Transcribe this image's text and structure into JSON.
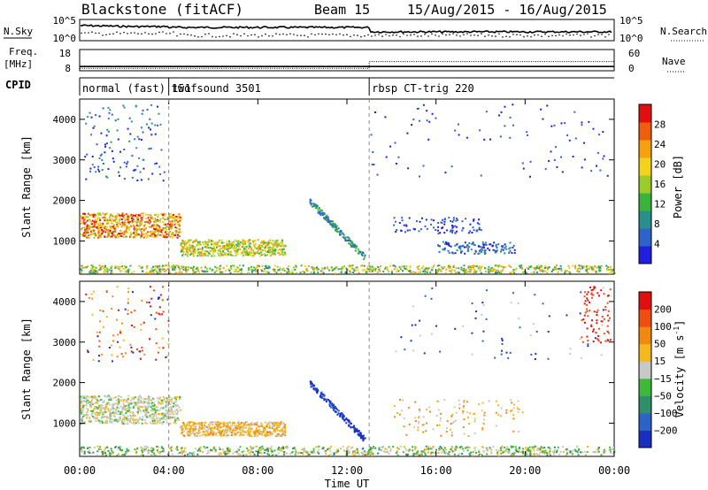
{
  "header": {
    "title": "Blackstone (fitACF)",
    "beam": "Beam 15",
    "date_range": "15/Aug/2015 - 16/Aug/2015"
  },
  "chart_data": [
    {
      "type": "line",
      "name": "noise-panel",
      "left_label": "N.Sky",
      "right_label": "N.Search",
      "left_ticks": [
        "10^5",
        "10^0"
      ],
      "right_ticks": [
        "10^5",
        "10^0"
      ],
      "series": [
        {
          "name": "N.Sky",
          "style": "solid"
        },
        {
          "name": "N.Search",
          "style": "dotted"
        }
      ]
    },
    {
      "type": "line",
      "name": "frequency-panel",
      "left_label": "Freq.",
      "left_unit": "[MHz]",
      "right_label": "Nave",
      "left_ticks": [
        "18",
        "8"
      ],
      "right_ticks": [
        "60",
        "0"
      ],
      "x": [
        "00:00",
        "04:00",
        "13:00",
        "24:00"
      ],
      "freq": [
        10,
        10,
        10,
        10
      ],
      "nave": [
        7,
        7,
        26,
        26
      ]
    },
    {
      "type": "table",
      "name": "cpid-panel",
      "label": "CPID",
      "segments": [
        {
          "start": 0,
          "end": 4,
          "label": "normal (fast) 151"
        },
        {
          "start": 4,
          "end": 13,
          "label": "twofsound 3501"
        },
        {
          "start": 13,
          "end": 24,
          "label": "rbsp CT-trig 220"
        }
      ]
    },
    {
      "type": "heatmap",
      "name": "power-panel",
      "ylabel": "Slant Range [km]",
      "xlabel": "Time UT",
      "xlim": [
        0,
        24
      ],
      "ylim": [
        180,
        4500
      ],
      "yticks": [
        "1000",
        "2000",
        "3000",
        "4000"
      ],
      "xticks": [
        "00:00",
        "04:00",
        "08:00",
        "12:00",
        "16:00",
        "20:00",
        "00:00"
      ],
      "colorbar": {
        "label": "Power [dB]",
        "ticks": [
          "28",
          "24",
          "20",
          "16",
          "12",
          "8",
          "4"
        ],
        "colors": [
          "#1f1fe0",
          "#2e63c9",
          "#2a8f8c",
          "#39b33a",
          "#9ccc2a",
          "#f2d21a",
          "#f5a00f",
          "#ef5e0f",
          "#e01010"
        ]
      }
    },
    {
      "type": "heatmap",
      "name": "velocity-panel",
      "ylabel": "Slant Range [km]",
      "xlabel": "Time UT",
      "xlim": [
        0,
        24
      ],
      "ylim": [
        180,
        4500
      ],
      "yticks": [
        "1000",
        "2000",
        "3000",
        "4000"
      ],
      "xticks": [
        "00:00",
        "04:00",
        "08:00",
        "12:00",
        "16:00",
        "20:00",
        "00:00"
      ],
      "colorbar": {
        "label": "Velocity [m s",
        "label_exp": "-1",
        "label_close": "]",
        "ticks": [
          "200",
          "100",
          "50",
          "15",
          "−15",
          "−50",
          "−100",
          "−200"
        ],
        "colors": [
          "#1a2fc0",
          "#2b63c8",
          "#2f8f6a",
          "#3fb93a",
          "#c8c8c8",
          "#f5b81a",
          "#f08a0f",
          "#ef4e10",
          "#e01010"
        ]
      }
    }
  ],
  "x_axis_title": "Time UT",
  "x_tick_labels": [
    "00:00",
    "04:00",
    "08:00",
    "12:00",
    "16:00",
    "20:00",
    "00:00"
  ]
}
